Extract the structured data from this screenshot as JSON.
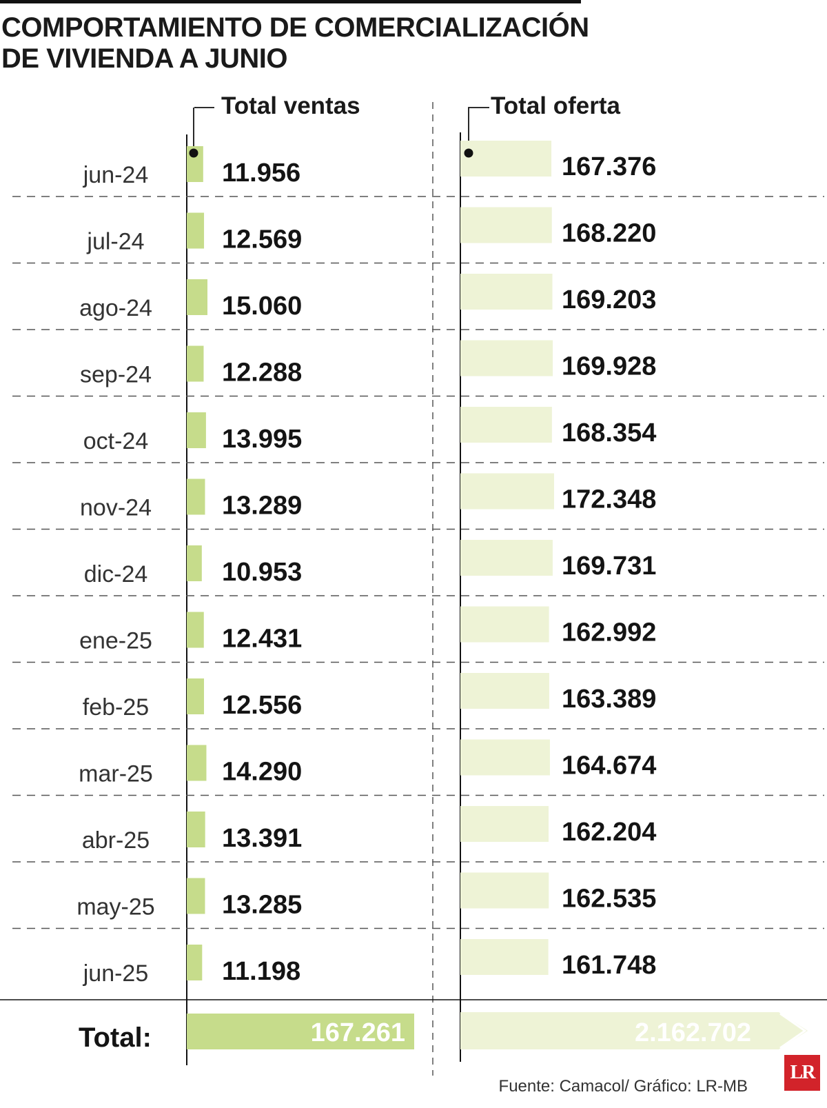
{
  "title": {
    "line1": "COMPORTAMIENTO DE COMERCIALIZACIÓN",
    "line2": "DE VIVIENDA A JUNIO"
  },
  "colors": {
    "ventas_bar": "#c6dc8b",
    "oferta_bar": "#eef3d6",
    "rule": "#111111",
    "dashed": "#555555"
  },
  "chart_data": {
    "type": "bar",
    "orientation": "horizontal",
    "title": "COMPORTAMIENTO DE COMERCIALIZACIÓN DE VIVIENDA A JUNIO",
    "categories": [
      "jun-24",
      "jul-24",
      "ago-24",
      "sep-24",
      "oct-24",
      "nov-24",
      "dic-24",
      "ene-25",
      "feb-25",
      "mar-25",
      "abr-25",
      "may-25",
      "jun-25"
    ],
    "series": [
      {
        "name": "Total ventas",
        "values": [
          11956,
          12569,
          15060,
          12288,
          13995,
          13289,
          10953,
          12431,
          12556,
          14290,
          13391,
          13285,
          11198
        ],
        "labels": [
          "11.956",
          "12.569",
          "15.060",
          "12.288",
          "13.995",
          "13.289",
          "10.953",
          "12.431",
          "12.556",
          "14.290",
          "13.391",
          "13.285",
          "11.198"
        ],
        "total": 167261,
        "total_label": "167.261"
      },
      {
        "name": "Total oferta",
        "values": [
          167376,
          168220,
          169203,
          169928,
          168354,
          172348,
          169731,
          162992,
          163389,
          164674,
          162204,
          162535,
          161748
        ],
        "labels": [
          "167.376",
          "168.220",
          "169.203",
          "169.928",
          "168.354",
          "172.348",
          "169.731",
          "162.992",
          "163.389",
          "164.674",
          "162.204",
          "162.535",
          "161.748"
        ],
        "total": 2162702,
        "total_label": "2.162.702"
      }
    ],
    "total_row_label": "Total:"
  },
  "source": "Fuente: Camacol/ Gráfico: LR-MB",
  "logo_text": "LR"
}
